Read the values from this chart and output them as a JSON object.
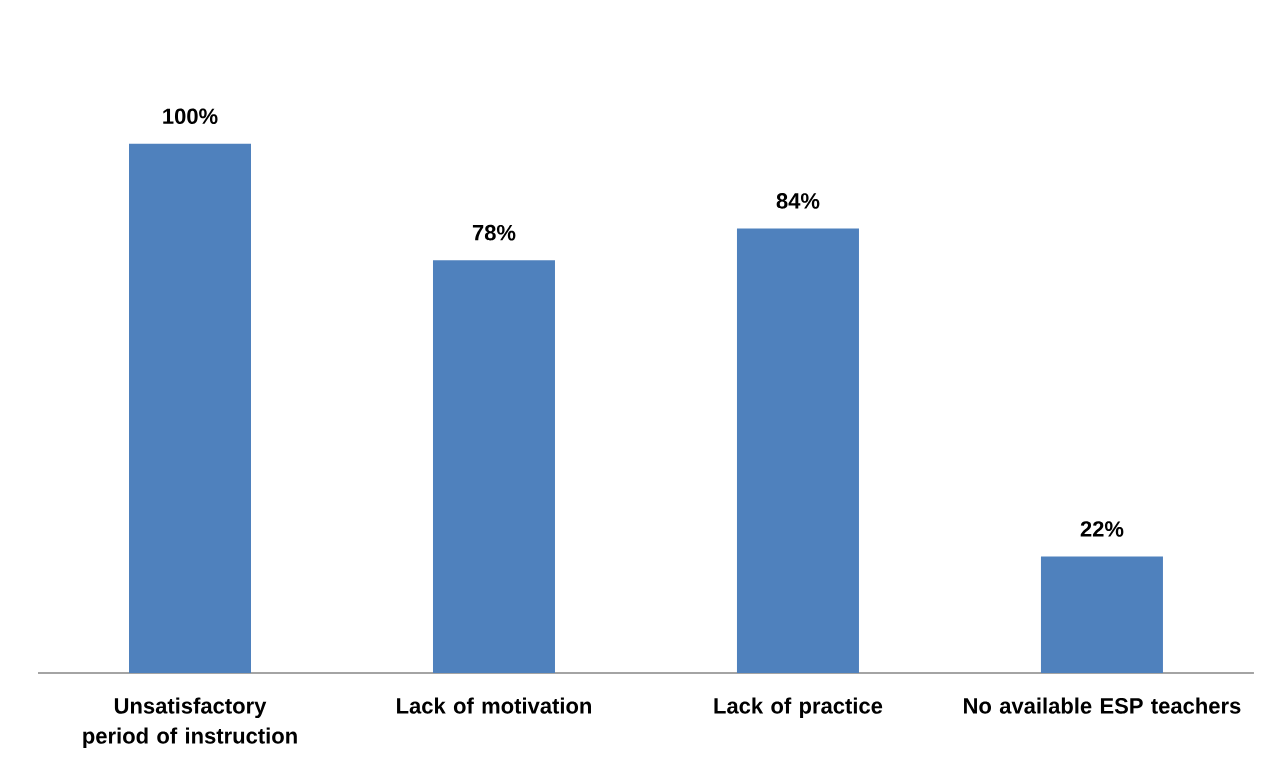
{
  "chart_data": {
    "type": "bar",
    "categories": [
      "Unsatisfactory period of instruction",
      "Lack of motivation",
      "Lack of practice",
      "No available ESP teachers"
    ],
    "values": [
      100,
      78,
      84,
      22
    ],
    "color": "#4f81bd",
    "value_labels": [
      "100%",
      "78%",
      "84%",
      "22%"
    ]
  }
}
